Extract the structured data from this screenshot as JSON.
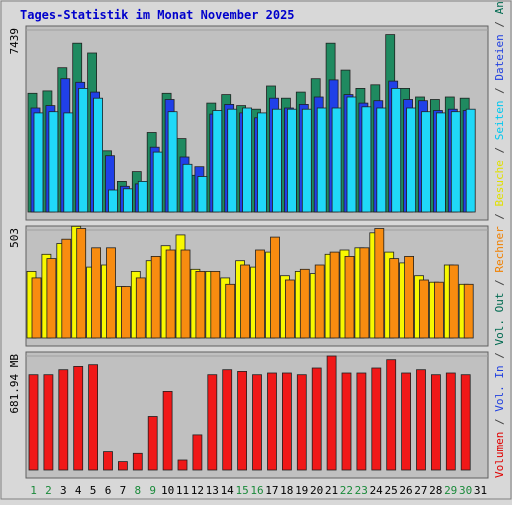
{
  "chart_data": {
    "type": "bar",
    "title": "Tages-Statistik im Monat November 2025",
    "categories": [
      "1",
      "2",
      "3",
      "4",
      "5",
      "6",
      "7",
      "8",
      "9",
      "10",
      "11",
      "12",
      "13",
      "14",
      "15",
      "16",
      "17",
      "18",
      "19",
      "20",
      "21",
      "22",
      "23",
      "24",
      "25",
      "26",
      "27",
      "28",
      "29",
      "30",
      "31"
    ],
    "weekend_days": [
      "1",
      "2",
      "8",
      "9",
      "15",
      "16",
      "22",
      "23",
      "29",
      "30"
    ],
    "panels": [
      {
        "id": "requests",
        "ymax_label": "7439",
        "ymax": 7439,
        "right_labels": [
          {
            "text": "Anfragen",
            "color": "#006a50"
          },
          {
            "text": " / ",
            "color": "#444444"
          },
          {
            "text": "Dateien",
            "color": "#1f3fe0"
          },
          {
            "text": " / ",
            "color": "#444444"
          },
          {
            "text": "Seiten",
            "color": "#00c8f0"
          },
          {
            "text": " / ",
            "color": "#444444"
          },
          {
            "text": "Besuche",
            "color": "#e0e000"
          }
        ],
        "series": [
          {
            "name": "Anfragen",
            "color": "#1f8a60",
            "values": [
              4850,
              4950,
              5900,
              6900,
              6500,
              2500,
              1250,
              1650,
              3250,
              4850,
              3000,
              1500,
              4450,
              4800,
              4350,
              4200,
              5150,
              4650,
              4900,
              5450,
              6900,
              5800,
              5050,
              5200,
              7250,
              5050,
              4700,
              4600,
              4700,
              4650,
              null
            ]
          },
          {
            "name": "Dateien",
            "color": "#2040e8",
            "values": [
              4250,
              4350,
              5450,
              5300,
              4900,
              2300,
              1050,
              1150,
              2650,
              4600,
              2250,
              1850,
              4000,
              4400,
              4050,
              3850,
              4650,
              4250,
              4400,
              4700,
              5400,
              4800,
              4450,
              4550,
              5350,
              4600,
              4550,
              4150,
              4200,
              4150,
              null
            ]
          },
          {
            "name": "Seiten",
            "color": "#20d8f8",
            "values": [
              4050,
              4100,
              4050,
              5050,
              4650,
              900,
              950,
              1250,
              2450,
              4100,
              1950,
              1450,
              4150,
              4200,
              4250,
              4050,
              4200,
              4200,
              4200,
              4250,
              4250,
              4700,
              4300,
              4250,
              5050,
              4250,
              4100,
              4050,
              4100,
              4200,
              null
            ]
          }
        ]
      },
      {
        "id": "visits",
        "ymax_label": "503",
        "ymax": 503,
        "series": [
          {
            "name": "Besuche",
            "color": "#f8f800",
            "values": [
              310,
              390,
              440,
              520,
              330,
              340,
              240,
              310,
              360,
              430,
              480,
              320,
              310,
              280,
              360,
              330,
              400,
              290,
              310,
              300,
              390,
              410,
              420,
              490,
              400,
              350,
              290,
              260,
              340,
              250,
              null
            ]
          },
          {
            "name": "Rechner",
            "color": "#f88c10",
            "values": [
              280,
              370,
              460,
              510,
              420,
              420,
              240,
              280,
              380,
              410,
              410,
              310,
              310,
              250,
              340,
              410,
              470,
              270,
              320,
              340,
              400,
              380,
              420,
              510,
              370,
              380,
              270,
              260,
              340,
              250,
              null
            ]
          }
        ]
      },
      {
        "id": "volume",
        "ymax_label": "681.94 MB",
        "ymax": 681.94,
        "right_labels": [
          {
            "text": "Volumen",
            "color": "#e00000"
          },
          {
            "text": " / ",
            "color": "#444444"
          },
          {
            "text": "Vol. In",
            "color": "#1f3fe0"
          },
          {
            "text": " / ",
            "color": "#444444"
          },
          {
            "text": "Vol. Out",
            "color": "#006a50"
          }
        ],
        "series": [
          {
            "name": "Volumen",
            "color": "#f01818",
            "values": [
              570,
              570,
              600,
              620,
              630,
              110,
              50,
              100,
              320,
              470,
              60,
              210,
              570,
              600,
              590,
              570,
              580,
              580,
              570,
              610,
              681.94,
              580,
              580,
              610,
              660,
              580,
              600,
              570,
              580,
              570,
              null
            ]
          }
        ]
      }
    ],
    "mid_labels": [
      {
        "text": "Rechner",
        "color": "#f08000"
      },
      {
        "text": " / ",
        "color": "#444444"
      },
      {
        "text": "Besuche",
        "color": "#e0e000"
      },
      {
        "text": " / ",
        "color": "#444444"
      },
      {
        "text": "Seiten",
        "color": "#00c8f0"
      },
      {
        "text": " / ",
        "color": "#444444"
      },
      {
        "text": "Dateien",
        "color": "#1f3fe0"
      },
      {
        "text": " / ",
        "color": "#444444"
      },
      {
        "text": "Anfragen",
        "color": "#006a50"
      }
    ],
    "right_axis_text": [
      {
        "text": "Volumen",
        "color": "#e00000"
      },
      {
        "text": " / ",
        "color": "#444444"
      },
      {
        "text": "Vol. In",
        "color": "#1f3fe0"
      },
      {
        "text": " / ",
        "color": "#444444"
      },
      {
        "text": "Vol. Out",
        "color": "#006a50"
      },
      {
        "text": " / ",
        "color": "#444444"
      },
      {
        "text": "Rechner",
        "color": "#f08000"
      },
      {
        "text": " / ",
        "color": "#444444"
      },
      {
        "text": "Besuche",
        "color": "#e0e000"
      },
      {
        "text": " / ",
        "color": "#444444"
      },
      {
        "text": "Seiten",
        "color": "#00c8f0"
      },
      {
        "text": " / ",
        "color": "#444444"
      },
      {
        "text": "Dateien",
        "color": "#1f3fe0"
      },
      {
        "text": " / ",
        "color": "#444444"
      },
      {
        "text": "Anfragen",
        "color": "#006a50"
      }
    ],
    "colors": {
      "background": "#c0c0c0",
      "frame_bg": "#d8d8d8",
      "title": "#0000cc",
      "weekday_label": "#000000",
      "weekend_label": "#1a8a3a",
      "grid": "#a0a0a0"
    }
  }
}
